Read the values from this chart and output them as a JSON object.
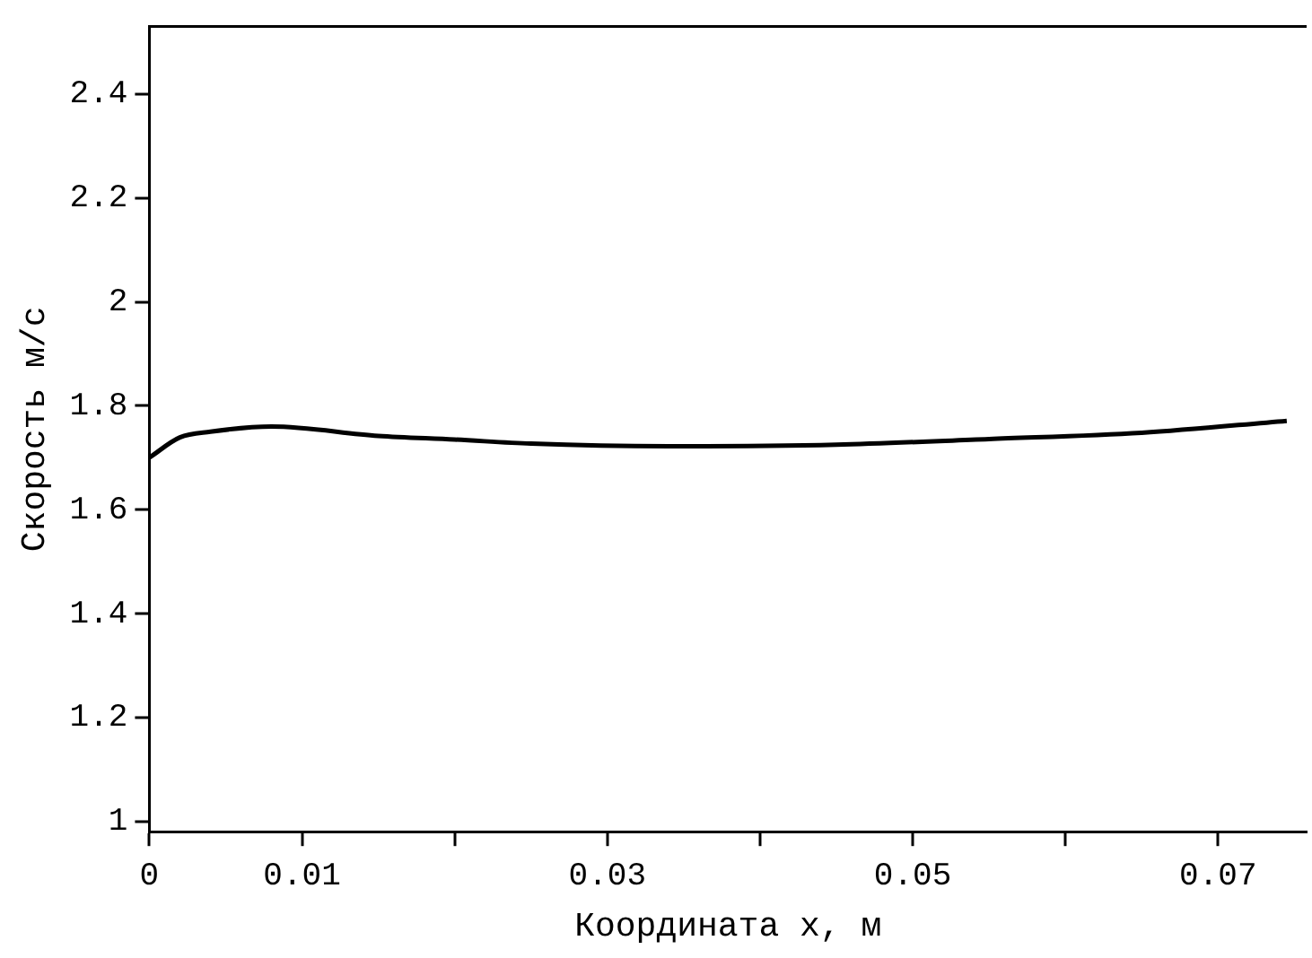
{
  "chart_data": {
    "type": "line",
    "xlabel": "Координата x, м",
    "ylabel": "Скорость м/с",
    "x": [
      0,
      0.002,
      0.004,
      0.008,
      0.015,
      0.02,
      0.025,
      0.034,
      0.045,
      0.055,
      0.065,
      0.0745
    ],
    "series": [
      {
        "color": "#000000",
        "values": [
          1.7,
          1.739,
          1.75,
          1.76,
          1.742,
          1.735,
          1.727,
          1.722,
          1.725,
          1.736,
          1.748,
          1.771
        ]
      }
    ],
    "xlim": [
      0,
      0.0758
    ],
    "xticks": [
      0,
      0.01,
      {
        "value": 0.02,
        "label": null
      },
      0.03,
      {
        "value": 0.04,
        "label": null
      },
      0.05,
      {
        "value": 0.06,
        "label": null
      },
      0.07
    ],
    "ylim": [
      0.98,
      2.53
    ],
    "yticks": [
      1,
      1.2,
      1.4,
      1.6,
      1.8,
      2,
      2.2,
      2.4
    ],
    "grid": false,
    "legend": false,
    "marker": "none",
    "line_style": "solid"
  }
}
